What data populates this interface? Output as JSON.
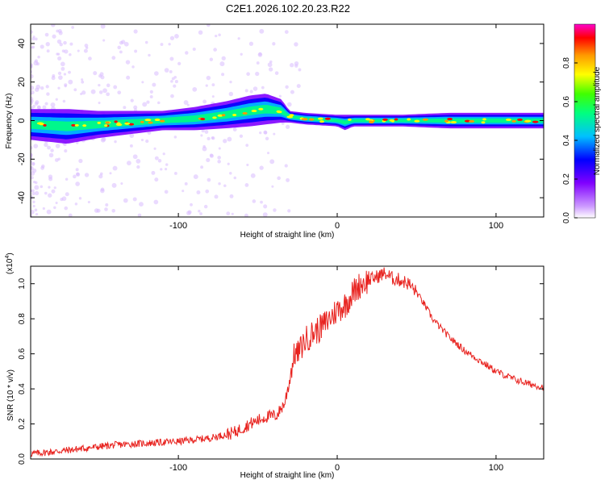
{
  "title": "C2E1.2026.102.20.23.R22",
  "chart_data": [
    {
      "type": "heatmap",
      "name": "spectrogram",
      "xlabel": "Height of straight line (km)",
      "ylabel": "Frequency (Hz)",
      "xlim": [
        -193,
        130
      ],
      "ylim": [
        -50,
        50
      ],
      "xticks": [
        -100,
        0,
        100
      ],
      "xtick_labels": [
        "-100",
        "0",
        "100"
      ],
      "yticks": [
        -40,
        -20,
        0,
        20,
        40
      ],
      "ytick_labels": [
        "-40",
        "-20",
        "0",
        "20",
        "40"
      ],
      "colorbar": {
        "label": "Normalized spectral amplitude",
        "range": [
          0,
          1
        ],
        "ticks": [
          0,
          0.2,
          0.4,
          0.6,
          0.8
        ],
        "tick_labels": [
          "0.0",
          "0.2",
          "0.4",
          "0.6",
          "0.8"
        ],
        "colormap": [
          "#ffffff",
          "#cc99ff",
          "#8000ff",
          "#0000ff",
          "#00c0ff",
          "#00ff80",
          "#40ff00",
          "#ffff00",
          "#ff9900",
          "#ff0000",
          "#ff00cc"
        ]
      },
      "ridge": {
        "x": [
          -193,
          -170,
          -150,
          -130,
          -110,
          -90,
          -70,
          -55,
          -45,
          -35,
          -30,
          -20,
          -10,
          0,
          5,
          10,
          20,
          40,
          70,
          100,
          130
        ],
        "freq": [
          -2,
          -3,
          -2,
          -1,
          0,
          1,
          3,
          5,
          6,
          5,
          2,
          1,
          0.5,
          0,
          -1,
          0,
          0,
          0,
          0,
          0,
          0
        ],
        "halfwidth": [
          8,
          9,
          7,
          6,
          5,
          6,
          7,
          8,
          8,
          6,
          3,
          3,
          3,
          3,
          4,
          3,
          3,
          3,
          4,
          4,
          4
        ]
      }
    },
    {
      "type": "line",
      "name": "snr",
      "xlabel": "Height of straight line (km)",
      "ylabel": "SNR (10 * v/v)",
      "scale_label": "(x10",
      "scale_exp": "4",
      "scale_close": ")",
      "xlim": [
        -193,
        130
      ],
      "ylim": [
        0,
        1.1
      ],
      "xticks": [
        -100,
        0,
        100
      ],
      "xtick_labels": [
        "-100",
        "0",
        "100"
      ],
      "yticks": [
        0,
        0.2,
        0.4,
        0.6,
        0.8,
        1.0
      ],
      "ytick_labels": [
        "0.0",
        "0.2",
        "0.4",
        "0.6",
        "0.8",
        "1.0"
      ],
      "color": "#e8231f",
      "series": [
        {
          "name": "SNR",
          "x": [
            -193,
            -180,
            -160,
            -140,
            -120,
            -100,
            -80,
            -65,
            -55,
            -45,
            -38,
            -33,
            -30,
            -27,
            -25,
            -20,
            -15,
            -10,
            -5,
            0,
            5,
            10,
            15,
            20,
            25,
            30,
            35,
            40,
            45,
            50,
            55,
            60,
            70,
            80,
            90,
            100,
            110,
            120,
            130
          ],
          "y": [
            0.03,
            0.04,
            0.06,
            0.08,
            0.09,
            0.1,
            0.12,
            0.15,
            0.2,
            0.24,
            0.25,
            0.32,
            0.45,
            0.6,
            0.6,
            0.68,
            0.72,
            0.75,
            0.8,
            0.85,
            0.88,
            0.95,
            1.0,
            1.02,
            1.04,
            1.06,
            1.03,
            1.02,
            1.0,
            0.95,
            0.88,
            0.8,
            0.7,
            0.62,
            0.56,
            0.5,
            0.46,
            0.43,
            0.41
          ]
        }
      ]
    }
  ]
}
